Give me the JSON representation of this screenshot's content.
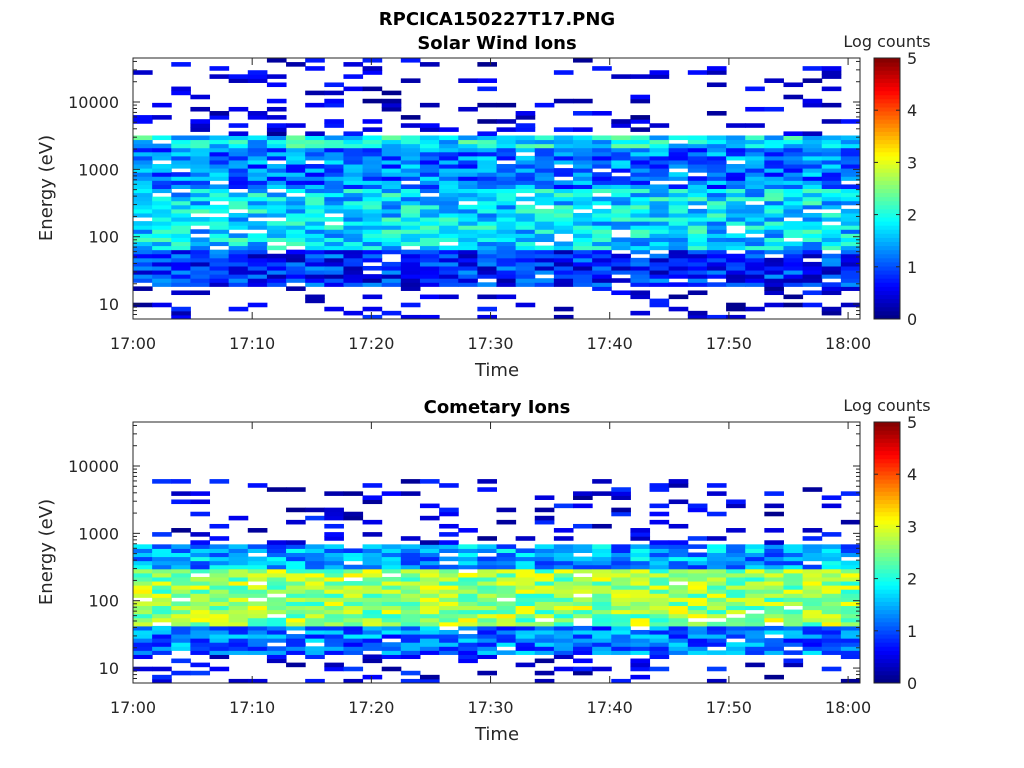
{
  "figure": {
    "title": "RPCICA150227T17.PNG"
  },
  "colors": {
    "axis": "#262626",
    "background": "#ffffff",
    "colormap": "jet"
  },
  "chart_data": [
    {
      "type": "heatmap",
      "title": "Solar Wind Ions",
      "xlabel": "Time",
      "ylabel": "Energy (eV)",
      "y_scale": "log",
      "xlim": [
        "17:00",
        "18:01"
      ],
      "ylim": [
        6,
        45000
      ],
      "x_ticks": [
        "17:00",
        "17:10",
        "17:20",
        "17:30",
        "17:40",
        "17:50",
        "18:00"
      ],
      "y_ticks": [
        "10",
        "100",
        "1000",
        "10000"
      ],
      "colorbar": {
        "label": "Log counts",
        "range": [
          0,
          5
        ],
        "ticks": [
          "0",
          "1",
          "2",
          "3",
          "4",
          "5"
        ]
      },
      "data_description_mode": "banded",
      "bands": [
        {
          "energy_range_eV": [
            6,
            18
          ],
          "log_counts_typical": 0.3
        },
        {
          "energy_range_eV": [
            18,
            60
          ],
          "log_counts_typical": 0.8
        },
        {
          "energy_range_eV": [
            60,
            500
          ],
          "log_counts_typical": 1.7
        },
        {
          "energy_range_eV": [
            500,
            2000
          ],
          "log_counts_typical": 1.2
        },
        {
          "energy_range_eV": [
            2000,
            3000
          ],
          "log_counts_typical": 1.8
        },
        {
          "energy_range_eV": [
            3000,
            45000
          ],
          "log_counts_typical": 0.2
        }
      ]
    },
    {
      "type": "heatmap",
      "title": "Cometary Ions",
      "xlabel": "Time",
      "ylabel": "Energy (eV)",
      "y_scale": "log",
      "xlim": [
        "17:00",
        "18:01"
      ],
      "ylim": [
        6,
        45000
      ],
      "x_ticks": [
        "17:00",
        "17:10",
        "17:20",
        "17:30",
        "17:40",
        "17:50",
        "18:00"
      ],
      "y_ticks": [
        "10",
        "100",
        "1000",
        "10000"
      ],
      "colorbar": {
        "label": "Log counts",
        "range": [
          0,
          5
        ],
        "ticks": [
          "0",
          "1",
          "2",
          "3",
          "4",
          "5"
        ]
      },
      "data_description_mode": "banded",
      "bands": [
        {
          "energy_range_eV": [
            6,
            15
          ],
          "log_counts_typical": 0.4
        },
        {
          "energy_range_eV": [
            15,
            40
          ],
          "log_counts_typical": 1.2
        },
        {
          "energy_range_eV": [
            40,
            300
          ],
          "log_counts_typical": 2.6
        },
        {
          "energy_range_eV": [
            300,
            700
          ],
          "log_counts_typical": 1.4
        },
        {
          "energy_range_eV": [
            700,
            6000
          ],
          "log_counts_typical": 0.3
        }
      ]
    }
  ]
}
